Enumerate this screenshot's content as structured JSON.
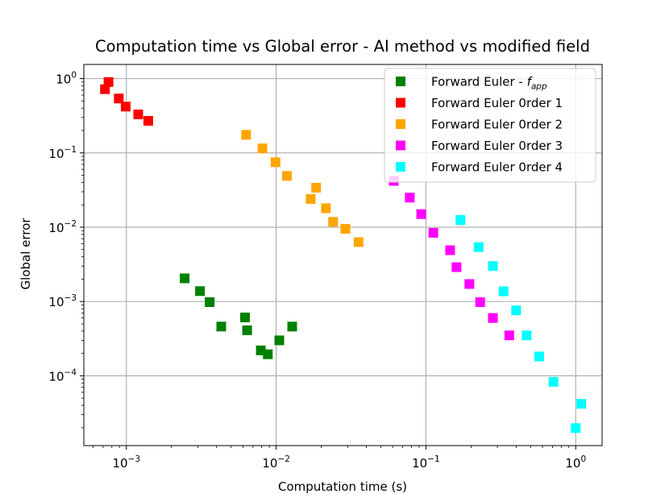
{
  "chart_data": {
    "type": "scatter",
    "title": "Computation time vs Global error - AI method vs modified field",
    "xlabel": "Computation time (s)",
    "ylabel": "Global error",
    "xscale": "log",
    "yscale": "log",
    "xlim": [
      0.00052,
      1.5
    ],
    "ylim": [
      1.15e-05,
      1.55
    ],
    "grid": true,
    "marker": "square",
    "legend_position": "top-right",
    "x_ticks": [
      {
        "value": 0.001,
        "base": "10",
        "exp": "−3"
      },
      {
        "value": 0.01,
        "base": "10",
        "exp": "−2"
      },
      {
        "value": 0.1,
        "base": "10",
        "exp": "−1"
      },
      {
        "value": 1,
        "base": "10",
        "exp": "0"
      }
    ],
    "y_ticks": [
      {
        "value": 0.0001,
        "base": "10",
        "exp": "−4"
      },
      {
        "value": 0.001,
        "base": "10",
        "exp": "−3"
      },
      {
        "value": 0.01,
        "base": "10",
        "exp": "−2"
      },
      {
        "value": 0.1,
        "base": "10",
        "exp": "−1"
      },
      {
        "value": 1,
        "base": "10",
        "exp": "0"
      }
    ],
    "series": [
      {
        "name": "Forward Euler - f",
        "name_sub": "app",
        "color": "#008000",
        "points": [
          [
            0.00245,
            0.00205
          ],
          [
            0.0031,
            0.00138
          ],
          [
            0.0036,
            0.00098
          ],
          [
            0.0043,
            0.00046
          ],
          [
            0.0062,
            0.00061
          ],
          [
            0.0064,
            0.00041
          ],
          [
            0.0079,
            0.00022
          ],
          [
            0.0088,
            0.000195
          ],
          [
            0.0105,
            0.0003
          ],
          [
            0.0128,
            0.00046
          ]
        ]
      },
      {
        "name": "Forward Euler 0rder 1",
        "color": "#ff0000",
        "points": [
          [
            0.00072,
            0.72
          ],
          [
            0.00076,
            0.9
          ],
          [
            0.00089,
            0.54
          ],
          [
            0.00099,
            0.42
          ],
          [
            0.0012,
            0.33
          ],
          [
            0.0014,
            0.27
          ]
        ]
      },
      {
        "name": "Forward Euler 0rder 2",
        "color": "#ffa500",
        "points": [
          [
            0.0063,
            0.175
          ],
          [
            0.0081,
            0.115
          ],
          [
            0.0099,
            0.075
          ],
          [
            0.0118,
            0.049
          ],
          [
            0.017,
            0.024
          ],
          [
            0.0185,
            0.034
          ],
          [
            0.0215,
            0.018
          ],
          [
            0.024,
            0.0118
          ],
          [
            0.029,
            0.0095
          ],
          [
            0.0355,
            0.0063
          ]
        ]
      },
      {
        "name": "Forward Euler 0rder 3",
        "color": "#ff00ff",
        "points": [
          [
            0.061,
            0.042
          ],
          [
            0.078,
            0.025
          ],
          [
            0.093,
            0.015
          ],
          [
            0.112,
            0.0084
          ],
          [
            0.145,
            0.0049
          ],
          [
            0.16,
            0.0029
          ],
          [
            0.195,
            0.00172
          ],
          [
            0.23,
            0.00098
          ],
          [
            0.28,
            0.0006
          ],
          [
            0.36,
            0.00035
          ]
        ]
      },
      {
        "name": "Forward Euler 0rder 4",
        "color": "#00ffff",
        "points": [
          [
            0.17,
            0.0125
          ],
          [
            0.225,
            0.0054
          ],
          [
            0.28,
            0.003
          ],
          [
            0.33,
            0.00137
          ],
          [
            0.4,
            0.00076
          ],
          [
            0.47,
            0.00035
          ],
          [
            0.57,
            0.000182
          ],
          [
            0.71,
            8.3e-05
          ],
          [
            1.0,
            1.98e-05
          ],
          [
            1.09,
            4.2e-05
          ]
        ]
      }
    ]
  }
}
